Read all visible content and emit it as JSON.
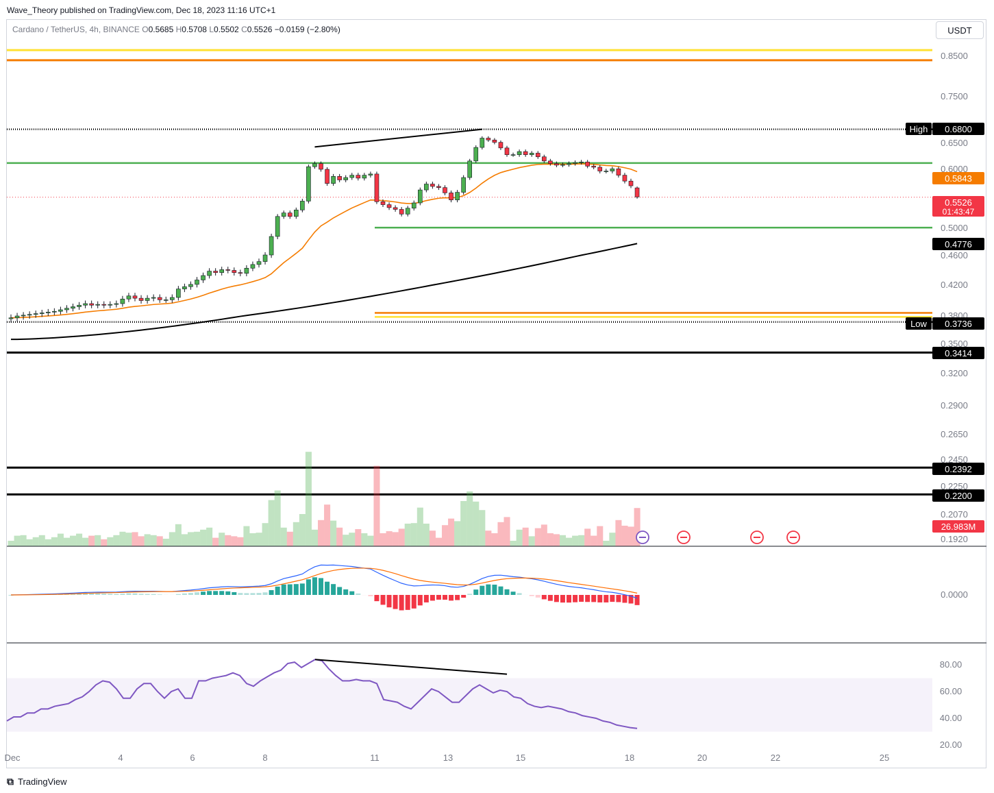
{
  "header": {
    "publisher_line": "Wave_Theory published on TradingView.com, Dec 18, 2023 11:16 UTC+1",
    "symbol": "Cardano / TetherUS, 4h, BINANCE",
    "o_label": "O",
    "o_value": "0.5685",
    "h_label": "H",
    "h_value": "0.5708",
    "l_label": "L",
    "l_value": "0.5502",
    "c_label": "C",
    "c_value": "0.5526",
    "change": "−0.0159 (−2.80%)",
    "currency": "USDT"
  },
  "footer": {
    "brand": "TradingView"
  },
  "colors": {
    "up": "#26a69a",
    "candle_up": "#4caf50",
    "candle_down": "#f23645",
    "ema_orange": "#f57c00",
    "ema_black": "#000000",
    "green_level": "#4caf50",
    "orange_level": "#f57c00",
    "yellow_level": "#ffe033",
    "rsi": "#7e57c2",
    "macd": "#2962ff",
    "signal": "#ff6d00"
  },
  "chart_data": [
    {
      "type": "candlestick",
      "title": "Cardano / TetherUS, 4h, BINANCE",
      "x_tick_labels": [
        "Dec",
        "4",
        "6",
        "8",
        "11",
        "13",
        "15",
        "18",
        "20",
        "22",
        "25"
      ],
      "y_tick_labels": [
        "0.8500",
        "0.7500",
        "0.6500",
        "0.6000",
        "0.5000",
        "0.4600",
        "0.4200",
        "0.3800",
        "0.3500",
        "0.3200",
        "0.2900",
        "0.2650",
        "0.2450",
        "0.2250",
        "0.2070",
        "0.1920"
      ],
      "ohlc_last": {
        "open": 0.5685,
        "high": 0.5708,
        "low": 0.5502,
        "close": 0.5526,
        "change": -0.0159,
        "change_pct": -2.8
      },
      "closes": [
        0.378,
        0.38,
        0.381,
        0.382,
        0.383,
        0.384,
        0.385,
        0.386,
        0.388,
        0.39,
        0.392,
        0.394,
        0.396,
        0.394,
        0.395,
        0.394,
        0.395,
        0.396,
        0.402,
        0.406,
        0.403,
        0.4,
        0.403,
        0.404,
        0.401,
        0.401,
        0.404,
        0.415,
        0.418,
        0.421,
        0.427,
        0.433,
        0.439,
        0.437,
        0.441,
        0.44,
        0.437,
        0.436,
        0.443,
        0.448,
        0.452,
        0.461,
        0.488,
        0.52,
        0.526,
        0.52,
        0.531,
        0.546,
        0.605,
        0.611,
        0.6,
        0.576,
        0.588,
        0.582,
        0.586,
        0.59,
        0.585,
        0.59,
        0.592,
        0.545,
        0.54,
        0.535,
        0.532,
        0.524,
        0.534,
        0.543,
        0.565,
        0.575,
        0.571,
        0.569,
        0.56,
        0.548,
        0.561,
        0.586,
        0.616,
        0.642,
        0.661,
        0.657,
        0.652,
        0.641,
        0.628,
        0.628,
        0.634,
        0.628,
        0.631,
        0.624,
        0.616,
        0.611,
        0.608,
        0.609,
        0.611,
        0.613,
        0.614,
        0.606,
        0.604,
        0.597,
        0.597,
        0.601,
        0.59,
        0.58,
        0.572,
        0.553
      ],
      "key_levels": [
        {
          "label": "",
          "value": 0.865,
          "color": "#ffe033"
        },
        {
          "label": "",
          "value": 0.84,
          "color": "#f57c00"
        },
        {
          "label": "High",
          "value": 0.68,
          "color": "#000000"
        },
        {
          "label": "",
          "value": 0.612,
          "color": "#4caf50"
        },
        {
          "label": "",
          "value": 0.501,
          "color": "#4caf50"
        },
        {
          "label": "",
          "value": 0.384,
          "color": "#f57c00"
        },
        {
          "label": "",
          "value": 0.379,
          "color": "#ffe033"
        },
        {
          "label": "Low",
          "value": 0.3736,
          "color": "#000000"
        },
        {
          "label": "",
          "value": 0.3414,
          "color": "#000000"
        },
        {
          "label": "",
          "value": 0.2392,
          "color": "#000000"
        },
        {
          "label": "",
          "value": 0.22,
          "color": "#000000"
        }
      ],
      "price_labels": [
        {
          "text": "0.6800",
          "prefix": "High",
          "bg": "#000000",
          "fg": "#ffffff"
        },
        {
          "text": "0.5843",
          "bg": "#f57c00",
          "fg": "#ffffff"
        },
        {
          "text": "0.5526",
          "sub": "01:43:47",
          "bg": "#f23645",
          "fg": "#ffffff"
        },
        {
          "text": "0.4776",
          "bg": "#000000",
          "fg": "#ffffff"
        },
        {
          "text": "0.3736",
          "prefix": "Low",
          "bg": "#000000",
          "fg": "#ffffff"
        },
        {
          "text": "0.3414",
          "bg": "#000000",
          "fg": "#ffffff"
        },
        {
          "text": "0.2392",
          "bg": "#000000",
          "fg": "#ffffff"
        },
        {
          "text": "0.2200",
          "bg": "#000000",
          "fg": "#ffffff"
        },
        {
          "text": "26.983M",
          "bg": "#f23645",
          "fg": "#ffffff"
        }
      ],
      "ema_50_last": 0.5843,
      "ema_200_last": 0.4776,
      "volume_last": "26.983M"
    },
    {
      "type": "macd",
      "y_tick_labels": [
        "0.0000"
      ]
    },
    {
      "type": "rsi",
      "y_tick_labels": [
        "80.00",
        "60.00",
        "40.00",
        "20.00"
      ],
      "values": [
        38,
        41,
        41,
        44,
        44,
        47,
        47,
        49,
        50,
        51,
        54,
        56,
        60,
        65,
        68,
        67,
        62,
        55,
        55,
        62,
        66,
        66,
        60,
        55,
        60,
        62,
        55,
        55,
        68,
        68,
        70,
        71,
        72,
        74,
        72,
        66,
        64,
        68,
        71,
        74,
        76,
        81,
        82,
        78,
        81,
        84,
        83,
        77,
        72,
        68,
        68,
        69,
        68,
        68,
        66,
        54,
        53,
        52,
        49,
        47,
        52,
        57,
        62,
        60,
        56,
        52,
        52,
        57,
        62,
        65,
        62,
        59,
        61,
        60,
        56,
        55,
        51,
        49,
        48,
        49,
        48,
        47,
        45,
        44,
        42,
        41,
        40,
        38,
        37,
        35,
        34,
        33,
        32.44
      ],
      "last": 32.44,
      "overbought_band": [
        30,
        70
      ]
    }
  ]
}
